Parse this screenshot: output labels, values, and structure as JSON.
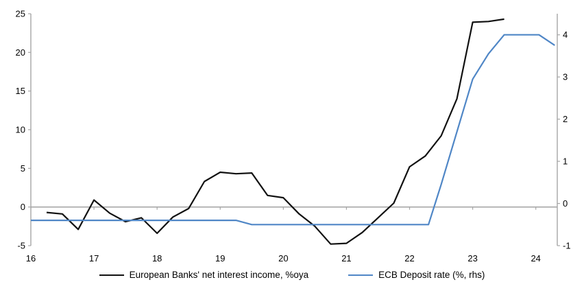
{
  "chart_data": {
    "type": "line",
    "title": "",
    "x_axis": {
      "range": [
        16,
        24.34
      ],
      "ticks": [
        16,
        17,
        18,
        19,
        20,
        21,
        22,
        23,
        24
      ],
      "tick_labels": [
        "16",
        "17",
        "18",
        "19",
        "20",
        "21",
        "22",
        "23",
        "24"
      ]
    },
    "y_left": {
      "range": [
        -5,
        25
      ],
      "ticks": [
        25,
        20,
        15,
        10,
        5,
        0,
        -5
      ],
      "tick_labels": [
        "25",
        "20",
        "15",
        "10",
        "5",
        "0",
        "-5"
      ]
    },
    "y_right": {
      "range": [
        -1,
        4.5
      ],
      "ticks": [
        4,
        3,
        2,
        1,
        0,
        -1
      ],
      "tick_labels": [
        "4",
        "3",
        "2",
        "1",
        "0",
        "-1"
      ]
    },
    "grid": "zero-line-only",
    "legend_position": "bottom",
    "series": [
      {
        "name": "European Banks' net interest income, %oya",
        "axis": "left",
        "color": "#111111",
        "points": [
          [
            16.25,
            -0.7
          ],
          [
            16.5,
            -0.9
          ],
          [
            16.75,
            -2.9
          ],
          [
            17.0,
            0.9
          ],
          [
            17.25,
            -0.8
          ],
          [
            17.5,
            -1.9
          ],
          [
            17.75,
            -1.4
          ],
          [
            18.0,
            -3.4
          ],
          [
            18.25,
            -1.3
          ],
          [
            18.5,
            -0.2
          ],
          [
            18.75,
            3.3
          ],
          [
            19.0,
            4.5
          ],
          [
            19.25,
            4.3
          ],
          [
            19.5,
            4.4
          ],
          [
            19.75,
            1.5
          ],
          [
            20.0,
            1.2
          ],
          [
            20.25,
            -0.9
          ],
          [
            20.5,
            -2.5
          ],
          [
            20.75,
            -4.8
          ],
          [
            21.0,
            -4.7
          ],
          [
            21.25,
            -3.3
          ],
          [
            21.5,
            -1.4
          ],
          [
            21.75,
            0.5
          ],
          [
            22.0,
            5.2
          ],
          [
            22.25,
            6.6
          ],
          [
            22.5,
            9.2
          ],
          [
            22.75,
            14.0
          ],
          [
            23.0,
            23.9
          ],
          [
            23.25,
            24.0
          ],
          [
            23.5,
            24.3
          ]
        ]
      },
      {
        "name": "ECB Deposit rate (%, rhs)",
        "axis": "right",
        "color": "#4f86c6",
        "points": [
          [
            16.0,
            -0.4
          ],
          [
            19.25,
            -0.4
          ],
          [
            19.5,
            -0.5
          ],
          [
            22.3,
            -0.5
          ],
          [
            22.5,
            0.45
          ],
          [
            22.75,
            1.7
          ],
          [
            23.0,
            2.95
          ],
          [
            23.25,
            3.55
          ],
          [
            23.5,
            4.0
          ],
          [
            24.05,
            4.0
          ],
          [
            24.3,
            3.75
          ]
        ]
      }
    ]
  },
  "colors": {
    "axis": "#a6a6a6",
    "tick_text": "#000000",
    "background": "#ffffff"
  }
}
